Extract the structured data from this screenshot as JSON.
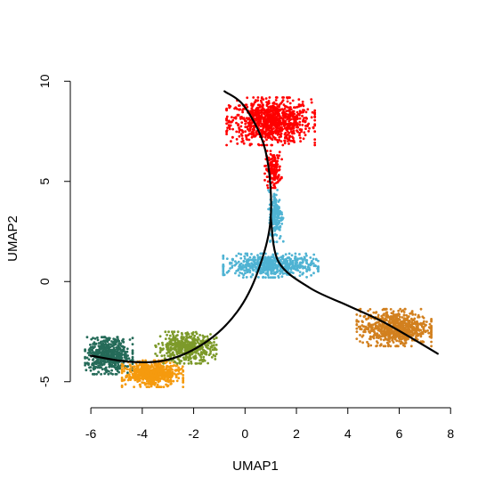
{
  "chart_data": {
    "type": "scatter",
    "title": "",
    "xlabel": "UMAP1",
    "ylabel": "UMAP2",
    "xlim": [
      -6.8,
      8.2
    ],
    "ylim": [
      -6.3,
      10.5
    ],
    "xticks": [
      "-6",
      "-4",
      "-2",
      "0",
      "2",
      "4",
      "6",
      "8"
    ],
    "yticks": [
      "-5",
      "0",
      "5",
      "10"
    ],
    "legend": "none",
    "grid": false,
    "clusters": [
      {
        "color": "#ff0000",
        "center": [
          1.0,
          8.0
        ],
        "spread": [
          1.3,
          0.9
        ],
        "n": 900
      },
      {
        "color": "#ff0000",
        "center": [
          1.1,
          5.6
        ],
        "spread": [
          0.25,
          0.7
        ],
        "n": 160
      },
      {
        "color": "#4fb3d3",
        "center": [
          1.0,
          0.8
        ],
        "spread": [
          1.4,
          0.45
        ],
        "n": 600
      },
      {
        "color": "#4fb3d3",
        "center": [
          1.2,
          3.3
        ],
        "spread": [
          0.22,
          1.0
        ],
        "n": 180
      },
      {
        "color": "#d2801f",
        "center": [
          5.8,
          -2.3
        ],
        "spread": [
          1.1,
          0.7
        ],
        "n": 750
      },
      {
        "color": "#256b59",
        "center": [
          -5.3,
          -3.7
        ],
        "spread": [
          0.7,
          0.7
        ],
        "n": 550
      },
      {
        "color": "#f59a0e",
        "center": [
          -3.6,
          -4.6
        ],
        "spread": [
          0.9,
          0.5
        ],
        "n": 600
      },
      {
        "color": "#7d9a2a",
        "center": [
          -2.3,
          -3.3
        ],
        "spread": [
          0.9,
          0.6
        ],
        "n": 500
      }
    ],
    "trajectories": [
      {
        "color": "#000000",
        "points": [
          [
            -6.0,
            -3.7
          ],
          [
            -4.5,
            -4.0
          ],
          [
            -3.0,
            -3.9
          ],
          [
            -1.5,
            -3.0
          ],
          [
            -0.3,
            -1.5
          ],
          [
            0.5,
            0.5
          ],
          [
            1.0,
            3.2
          ],
          [
            0.8,
            6.5
          ],
          [
            0.0,
            8.7
          ],
          [
            -0.8,
            9.5
          ]
        ]
      },
      {
        "color": "#000000",
        "points": [
          [
            1.0,
            3.2
          ],
          [
            1.3,
            1.0
          ],
          [
            2.5,
            -0.3
          ],
          [
            4.0,
            -1.2
          ],
          [
            5.5,
            -2.1
          ],
          [
            7.5,
            -3.6
          ]
        ]
      }
    ]
  }
}
